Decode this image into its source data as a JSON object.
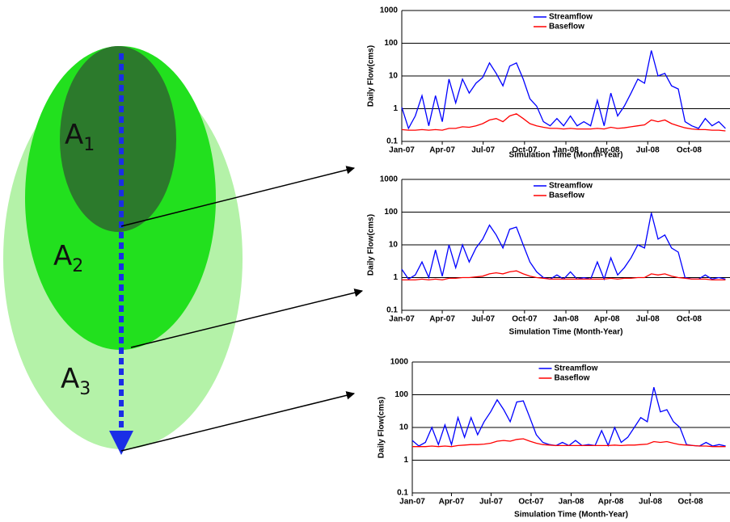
{
  "diagram": {
    "labels": [
      {
        "base": "A",
        "subscript": "1"
      },
      {
        "base": "A",
        "subscript": "2"
      },
      {
        "base": "A",
        "subscript": "3"
      }
    ]
  },
  "chart_data": [
    {
      "type": "line",
      "log": true,
      "grid": true,
      "legend": "top",
      "y_label": "Daily Flow(cms)",
      "x_label": "Simulation Time (Month-Year)",
      "xlim": [
        0,
        730
      ],
      "xticks": [
        {
          "value": 0,
          "label": "Jan-07"
        },
        {
          "value": 90,
          "label": "Apr-07"
        },
        {
          "value": 181,
          "label": "Jul-07"
        },
        {
          "value": 273,
          "label": "Oct-07"
        },
        {
          "value": 365,
          "label": "Jan-08"
        },
        {
          "value": 456,
          "label": "Apr-08"
        },
        {
          "value": 547,
          "label": "Jul-08"
        },
        {
          "value": 639,
          "label": "Oct-08"
        }
      ],
      "ylim": [
        0.1,
        1000
      ],
      "yticks": [
        0.1,
        1,
        10,
        100,
        1000
      ],
      "x": [
        0,
        15,
        30,
        45,
        60,
        75,
        90,
        105,
        120,
        135,
        150,
        165,
        180,
        195,
        210,
        225,
        240,
        255,
        270,
        285,
        300,
        315,
        330,
        345,
        360,
        375,
        390,
        405,
        420,
        435,
        450,
        465,
        480,
        495,
        510,
        525,
        540,
        555,
        570,
        585,
        600,
        615,
        630,
        645,
        660,
        675,
        690,
        705,
        720
      ],
      "series": [
        {
          "name": "Streamflow",
          "color": "#0000ff",
          "values": [
            1.1,
            0.25,
            0.6,
            2.5,
            0.3,
            2.5,
            0.4,
            8,
            1.5,
            8,
            3,
            6,
            9,
            25,
            12,
            5,
            20,
            25,
            8,
            2,
            1.2,
            0.4,
            0.3,
            0.5,
            0.3,
            0.6,
            0.3,
            0.4,
            0.3,
            1.8,
            0.3,
            3,
            0.6,
            1.2,
            3,
            8,
            6,
            60,
            10,
            12,
            5,
            4,
            0.4,
            0.3,
            0.25,
            0.5,
            0.3,
            0.4,
            0.25
          ]
        },
        {
          "name": "Baseflow",
          "color": "#ff0000",
          "values": [
            0.23,
            0.22,
            0.22,
            0.23,
            0.22,
            0.23,
            0.22,
            0.25,
            0.25,
            0.28,
            0.27,
            0.3,
            0.35,
            0.45,
            0.5,
            0.4,
            0.6,
            0.7,
            0.5,
            0.35,
            0.3,
            0.27,
            0.25,
            0.25,
            0.24,
            0.25,
            0.24,
            0.24,
            0.24,
            0.25,
            0.24,
            0.27,
            0.25,
            0.26,
            0.28,
            0.3,
            0.32,
            0.45,
            0.4,
            0.45,
            0.35,
            0.3,
            0.26,
            0.24,
            0.23,
            0.23,
            0.22,
            0.22,
            0.21
          ]
        }
      ]
    },
    {
      "type": "line",
      "log": true,
      "grid": true,
      "legend": "top",
      "y_label": "Daily Flow(cms)",
      "x_label": "Simulation Time (Month-Year)",
      "xlim": [
        0,
        730
      ],
      "xticks": [
        {
          "value": 0,
          "label": "Jan-07"
        },
        {
          "value": 90,
          "label": "Apr-07"
        },
        {
          "value": 181,
          "label": "Jul-07"
        },
        {
          "value": 273,
          "label": "Oct-07"
        },
        {
          "value": 365,
          "label": "Jan-08"
        },
        {
          "value": 456,
          "label": "Apr-08"
        },
        {
          "value": 547,
          "label": "Jul-08"
        },
        {
          "value": 639,
          "label": "Oct-08"
        }
      ],
      "ylim": [
        0.1,
        1000
      ],
      "yticks": [
        0.1,
        1,
        10,
        100,
        1000
      ],
      "x": [
        0,
        15,
        30,
        45,
        60,
        75,
        90,
        105,
        120,
        135,
        150,
        165,
        180,
        195,
        210,
        225,
        240,
        255,
        270,
        285,
        300,
        315,
        330,
        345,
        360,
        375,
        390,
        405,
        420,
        435,
        450,
        465,
        480,
        495,
        510,
        525,
        540,
        555,
        570,
        585,
        600,
        615,
        630,
        645,
        660,
        675,
        690,
        705,
        720
      ],
      "series": [
        {
          "name": "Streamflow",
          "color": "#0000ff",
          "values": [
            1.8,
            0.9,
            1.2,
            3,
            1,
            7,
            1.1,
            10,
            2,
            10,
            3,
            8,
            15,
            40,
            20,
            8,
            30,
            35,
            10,
            3,
            1.5,
            1,
            0.9,
            1.2,
            0.9,
            1.5,
            0.9,
            1,
            0.9,
            3,
            0.9,
            4,
            1.2,
            2,
            4,
            10,
            8,
            95,
            15,
            20,
            8,
            6,
            1,
            0.9,
            0.9,
            1.2,
            0.9,
            1,
            0.9
          ]
        },
        {
          "name": "Baseflow",
          "color": "#ff0000",
          "values": [
            0.85,
            0.85,
            0.85,
            0.9,
            0.85,
            0.9,
            0.85,
            0.95,
            0.95,
            1,
            1,
            1.05,
            1.1,
            1.3,
            1.4,
            1.3,
            1.5,
            1.6,
            1.3,
            1.1,
            1,
            0.95,
            0.9,
            0.9,
            0.9,
            0.9,
            0.9,
            0.9,
            0.9,
            0.9,
            0.9,
            0.95,
            0.9,
            0.95,
            0.95,
            1,
            1,
            1.3,
            1.2,
            1.3,
            1.1,
            1,
            0.95,
            0.9,
            0.9,
            0.9,
            0.85,
            0.85,
            0.85
          ]
        }
      ]
    },
    {
      "type": "line",
      "log": true,
      "grid": true,
      "legend": "top",
      "y_label": "Daily Flow(cms)",
      "x_label": "Simulation Time (Month-Year)",
      "xlim": [
        0,
        730
      ],
      "xticks": [
        {
          "value": 0,
          "label": "Jan-07"
        },
        {
          "value": 90,
          "label": "Apr-07"
        },
        {
          "value": 181,
          "label": "Jul-07"
        },
        {
          "value": 273,
          "label": "Oct-07"
        },
        {
          "value": 365,
          "label": "Jan-08"
        },
        {
          "value": 456,
          "label": "Apr-08"
        },
        {
          "value": 547,
          "label": "Jul-08"
        },
        {
          "value": 639,
          "label": "Oct-08"
        }
      ],
      "ylim": [
        0.1,
        1000
      ],
      "yticks": [
        0.1,
        1,
        10,
        100,
        1000
      ],
      "x": [
        0,
        15,
        30,
        45,
        60,
        75,
        90,
        105,
        120,
        135,
        150,
        165,
        180,
        195,
        210,
        225,
        240,
        255,
        270,
        285,
        300,
        315,
        330,
        345,
        360,
        375,
        390,
        405,
        420,
        435,
        450,
        465,
        480,
        495,
        510,
        525,
        540,
        555,
        570,
        585,
        600,
        615,
        630,
        645,
        660,
        675,
        690,
        705,
        720
      ],
      "series": [
        {
          "name": "Streamflow",
          "color": "#0000ff",
          "values": [
            4,
            2.7,
            3.5,
            10,
            3,
            12,
            3,
            20,
            5,
            20,
            6,
            15,
            30,
            70,
            35,
            15,
            60,
            65,
            20,
            6,
            3.5,
            3,
            2.8,
            3.5,
            2.8,
            4,
            2.8,
            3,
            2.8,
            8,
            2.8,
            10,
            3.5,
            5,
            10,
            20,
            15,
            170,
            30,
            35,
            15,
            10,
            3,
            2.8,
            2.7,
            3.5,
            2.7,
            3,
            2.7
          ]
        },
        {
          "name": "Baseflow",
          "color": "#ff0000",
          "values": [
            2.6,
            2.6,
            2.6,
            2.7,
            2.6,
            2.7,
            2.6,
            2.8,
            2.9,
            3,
            3,
            3.1,
            3.3,
            3.8,
            4,
            3.8,
            4.3,
            4.5,
            3.8,
            3.3,
            3,
            2.9,
            2.8,
            2.8,
            2.8,
            2.8,
            2.8,
            2.8,
            2.8,
            2.8,
            2.8,
            2.9,
            2.8,
            2.9,
            2.9,
            3,
            3.1,
            3.7,
            3.5,
            3.7,
            3.3,
            3,
            2.9,
            2.8,
            2.7,
            2.7,
            2.6,
            2.6,
            2.6
          ]
        }
      ]
    }
  ]
}
